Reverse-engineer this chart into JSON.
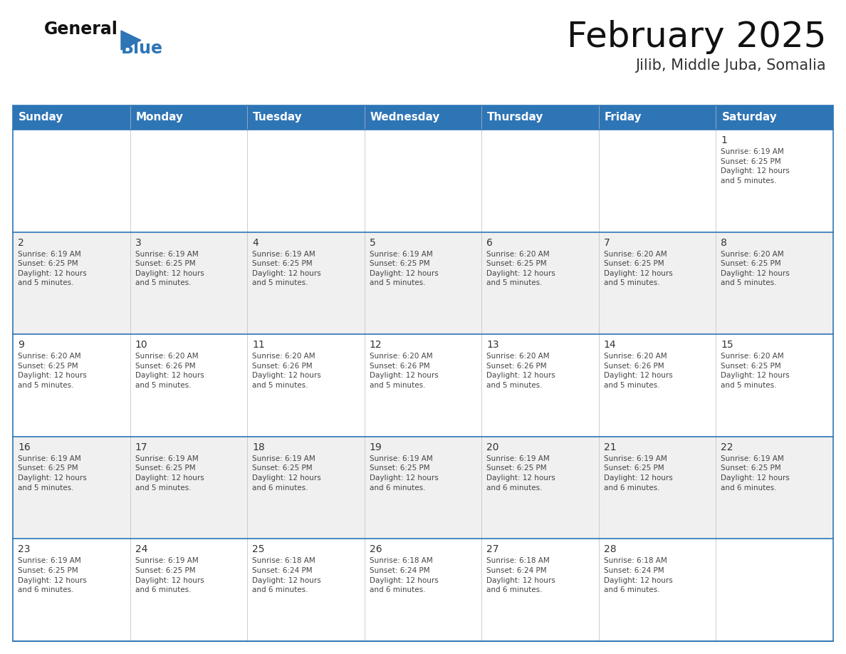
{
  "title": "February 2025",
  "subtitle": "Jilib, Middle Juba, Somalia",
  "header_bg_color": "#2E75B6",
  "header_text_color": "#FFFFFF",
  "cell_bg_color": "#FFFFFF",
  "alt_cell_bg_color": "#F0F0F0",
  "border_color": "#2E75B6",
  "day_number_color": "#333333",
  "cell_text_color": "#444444",
  "days_of_week": [
    "Sunday",
    "Monday",
    "Tuesday",
    "Wednesday",
    "Thursday",
    "Friday",
    "Saturday"
  ],
  "calendar_data": [
    [
      {
        "day": null,
        "info": null
      },
      {
        "day": null,
        "info": null
      },
      {
        "day": null,
        "info": null
      },
      {
        "day": null,
        "info": null
      },
      {
        "day": null,
        "info": null
      },
      {
        "day": null,
        "info": null
      },
      {
        "day": 1,
        "info": "Sunrise: 6:19 AM\nSunset: 6:25 PM\nDaylight: 12 hours\nand 5 minutes."
      }
    ],
    [
      {
        "day": 2,
        "info": "Sunrise: 6:19 AM\nSunset: 6:25 PM\nDaylight: 12 hours\nand 5 minutes."
      },
      {
        "day": 3,
        "info": "Sunrise: 6:19 AM\nSunset: 6:25 PM\nDaylight: 12 hours\nand 5 minutes."
      },
      {
        "day": 4,
        "info": "Sunrise: 6:19 AM\nSunset: 6:25 PM\nDaylight: 12 hours\nand 5 minutes."
      },
      {
        "day": 5,
        "info": "Sunrise: 6:19 AM\nSunset: 6:25 PM\nDaylight: 12 hours\nand 5 minutes."
      },
      {
        "day": 6,
        "info": "Sunrise: 6:20 AM\nSunset: 6:25 PM\nDaylight: 12 hours\nand 5 minutes."
      },
      {
        "day": 7,
        "info": "Sunrise: 6:20 AM\nSunset: 6:25 PM\nDaylight: 12 hours\nand 5 minutes."
      },
      {
        "day": 8,
        "info": "Sunrise: 6:20 AM\nSunset: 6:25 PM\nDaylight: 12 hours\nand 5 minutes."
      }
    ],
    [
      {
        "day": 9,
        "info": "Sunrise: 6:20 AM\nSunset: 6:25 PM\nDaylight: 12 hours\nand 5 minutes."
      },
      {
        "day": 10,
        "info": "Sunrise: 6:20 AM\nSunset: 6:26 PM\nDaylight: 12 hours\nand 5 minutes."
      },
      {
        "day": 11,
        "info": "Sunrise: 6:20 AM\nSunset: 6:26 PM\nDaylight: 12 hours\nand 5 minutes."
      },
      {
        "day": 12,
        "info": "Sunrise: 6:20 AM\nSunset: 6:26 PM\nDaylight: 12 hours\nand 5 minutes."
      },
      {
        "day": 13,
        "info": "Sunrise: 6:20 AM\nSunset: 6:26 PM\nDaylight: 12 hours\nand 5 minutes."
      },
      {
        "day": 14,
        "info": "Sunrise: 6:20 AM\nSunset: 6:26 PM\nDaylight: 12 hours\nand 5 minutes."
      },
      {
        "day": 15,
        "info": "Sunrise: 6:20 AM\nSunset: 6:25 PM\nDaylight: 12 hours\nand 5 minutes."
      }
    ],
    [
      {
        "day": 16,
        "info": "Sunrise: 6:19 AM\nSunset: 6:25 PM\nDaylight: 12 hours\nand 5 minutes."
      },
      {
        "day": 17,
        "info": "Sunrise: 6:19 AM\nSunset: 6:25 PM\nDaylight: 12 hours\nand 5 minutes."
      },
      {
        "day": 18,
        "info": "Sunrise: 6:19 AM\nSunset: 6:25 PM\nDaylight: 12 hours\nand 6 minutes."
      },
      {
        "day": 19,
        "info": "Sunrise: 6:19 AM\nSunset: 6:25 PM\nDaylight: 12 hours\nand 6 minutes."
      },
      {
        "day": 20,
        "info": "Sunrise: 6:19 AM\nSunset: 6:25 PM\nDaylight: 12 hours\nand 6 minutes."
      },
      {
        "day": 21,
        "info": "Sunrise: 6:19 AM\nSunset: 6:25 PM\nDaylight: 12 hours\nand 6 minutes."
      },
      {
        "day": 22,
        "info": "Sunrise: 6:19 AM\nSunset: 6:25 PM\nDaylight: 12 hours\nand 6 minutes."
      }
    ],
    [
      {
        "day": 23,
        "info": "Sunrise: 6:19 AM\nSunset: 6:25 PM\nDaylight: 12 hours\nand 6 minutes."
      },
      {
        "day": 24,
        "info": "Sunrise: 6:19 AM\nSunset: 6:25 PM\nDaylight: 12 hours\nand 6 minutes."
      },
      {
        "day": 25,
        "info": "Sunrise: 6:18 AM\nSunset: 6:24 PM\nDaylight: 12 hours\nand 6 minutes."
      },
      {
        "day": 26,
        "info": "Sunrise: 6:18 AM\nSunset: 6:24 PM\nDaylight: 12 hours\nand 6 minutes."
      },
      {
        "day": 27,
        "info": "Sunrise: 6:18 AM\nSunset: 6:24 PM\nDaylight: 12 hours\nand 6 minutes."
      },
      {
        "day": 28,
        "info": "Sunrise: 6:18 AM\nSunset: 6:24 PM\nDaylight: 12 hours\nand 6 minutes."
      },
      {
        "day": null,
        "info": null
      }
    ]
  ],
  "logo_color_general": "#111111",
  "logo_color_blue": "#2E75B6",
  "logo_triangle_color": "#2E75B6",
  "title_fontsize": 36,
  "subtitle_fontsize": 15,
  "header_fontsize": 11,
  "day_num_fontsize": 10,
  "cell_info_fontsize": 7.5
}
